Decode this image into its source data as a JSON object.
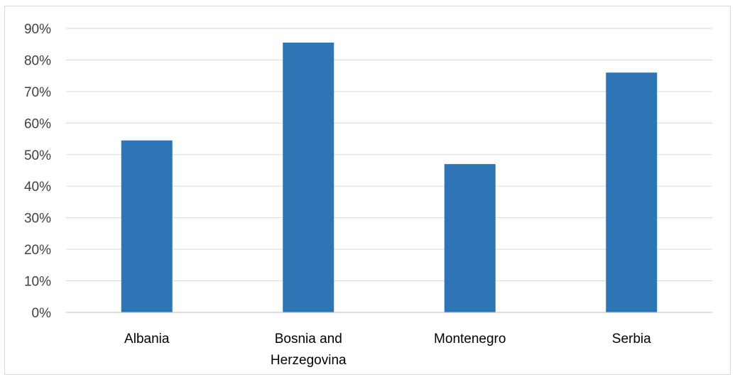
{
  "chart_data": {
    "type": "bar",
    "title": "",
    "xlabel": "",
    "ylabel": "",
    "categories": [
      "Albania",
      "Bosnia and Herzegovina",
      "Montenegro",
      "Serbia"
    ],
    "category_label_lines": [
      [
        "Albania"
      ],
      [
        "Bosnia and",
        "Herzegovina"
      ],
      [
        "Montenegro"
      ],
      [
        "Serbia"
      ]
    ],
    "values": [
      0.545,
      0.855,
      0.47,
      0.76
    ],
    "ylim": [
      0,
      0.9
    ],
    "yticks": [
      0,
      0.1,
      0.2,
      0.3,
      0.4,
      0.5,
      0.6,
      0.7,
      0.8,
      0.9
    ],
    "ytick_labels": [
      "0%",
      "10%",
      "20%",
      "30%",
      "40%",
      "50%",
      "60%",
      "70%",
      "80%",
      "90%"
    ],
    "grid": true,
    "legend": "none",
    "colors": {
      "bar": "#2e75b6",
      "grid": "#d9d9d9",
      "axis": "#bfbfbf"
    }
  }
}
